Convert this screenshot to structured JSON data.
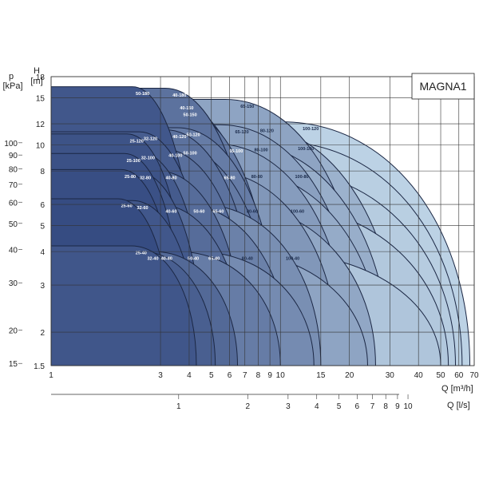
{
  "chart_data": {
    "type": "area",
    "title": "MAGNA1",
    "x_axis": {
      "label": "Q [m³/h]",
      "scale": "log",
      "range": [
        1,
        70
      ],
      "ticks": [
        1,
        3,
        4,
        5,
        6,
        7,
        8,
        9,
        10,
        15,
        20,
        30,
        40,
        50,
        60,
        70
      ]
    },
    "x2_axis": {
      "label": "Q [l/s]",
      "scale": "log",
      "ticks": [
        1,
        2,
        3,
        4,
        5,
        6,
        7,
        8,
        9,
        10
      ]
    },
    "y_axis": {
      "label_top": "H",
      "label_bottom": "[m]",
      "scale": "log",
      "range": [
        1.5,
        18
      ],
      "ticks": [
        1.5,
        2,
        3,
        4,
        5,
        6,
        8,
        10,
        12,
        15,
        18
      ]
    },
    "y2_axis": {
      "label_top": "p",
      "label_bottom": "[kPa]",
      "scale": "log",
      "ticks": [
        15,
        20,
        30,
        40,
        50,
        60,
        70,
        80,
        90,
        100
      ]
    },
    "grid": true,
    "series": [
      {
        "name": "50-180",
        "hmax": 16.5,
        "qmax": 4.4
      },
      {
        "name": "40-180",
        "hmax": 16.3,
        "qmax": 8.0
      },
      {
        "name": "65-150",
        "hmax": 14.8,
        "qmax": 24.0
      },
      {
        "name": "40-150",
        "hmax": 14.6,
        "qmax": 9.0
      },
      {
        "name": "50-150",
        "hmax": 13.8,
        "qmax": 9.5
      },
      {
        "name": "100-120",
        "hmax": 12.2,
        "qmax": 67.0
      },
      {
        "name": "80-120",
        "hmax": 12.0,
        "qmax": 33.0
      },
      {
        "name": "65-120",
        "hmax": 11.9,
        "qmax": 22.0
      },
      {
        "name": "50-120",
        "hmax": 11.6,
        "qmax": 10.0
      },
      {
        "name": "40-120",
        "hmax": 11.4,
        "qmax": 8.0
      },
      {
        "name": "32-120",
        "hmax": 11.2,
        "qmax": 5.0
      },
      {
        "name": "25-120",
        "hmax": 11.0,
        "qmax": 4.0
      },
      {
        "name": "100-100",
        "hmax": 10.3,
        "qmax": 62.0
      },
      {
        "name": "80-100",
        "hmax": 10.2,
        "qmax": 30.0
      },
      {
        "name": "65-100",
        "hmax": 10.1,
        "qmax": 20.0
      },
      {
        "name": "50-100",
        "hmax": 9.9,
        "qmax": 9.5
      },
      {
        "name": "40-100",
        "hmax": 9.7,
        "qmax": 7.5
      },
      {
        "name": "32-100",
        "hmax": 9.5,
        "qmax": 4.8
      },
      {
        "name": "25-100",
        "hmax": 9.3,
        "qmax": 3.8
      },
      {
        "name": "100-80",
        "hmax": 8.1,
        "qmax": 58.0
      },
      {
        "name": "80-80",
        "hmax": 8.1,
        "qmax": 28.0
      },
      {
        "name": "65-80",
        "hmax": 8.0,
        "qmax": 18.0
      },
      {
        "name": "40-80",
        "hmax": 8.0,
        "qmax": 7.0
      },
      {
        "name": "32-80",
        "hmax": 8.0,
        "qmax": 4.6
      },
      {
        "name": "25-80",
        "hmax": 8.1,
        "qmax": 3.6
      },
      {
        "name": "100-60",
        "hmax": 6.0,
        "qmax": 54.0
      },
      {
        "name": "80-60",
        "hmax": 6.0,
        "qmax": 26.0
      },
      {
        "name": "65-60",
        "hmax": 6.0,
        "qmax": 15.0
      },
      {
        "name": "50-60",
        "hmax": 6.0,
        "qmax": 11.0
      },
      {
        "name": "40-60",
        "hmax": 6.0,
        "qmax": 7.0
      },
      {
        "name": "32-60",
        "hmax": 6.2,
        "qmax": 4.4
      },
      {
        "name": "25-60",
        "hmax": 6.3,
        "qmax": 3.4
      },
      {
        "name": "100-40",
        "hmax": 4.0,
        "qmax": 50.0
      },
      {
        "name": "80-40",
        "hmax": 4.0,
        "qmax": 24.0
      },
      {
        "name": "65-40",
        "hmax": 4.0,
        "qmax": 14.0
      },
      {
        "name": "50-40",
        "hmax": 4.0,
        "qmax": 10.0
      },
      {
        "name": "40-40",
        "hmax": 4.0,
        "qmax": 6.5
      },
      {
        "name": "32-40",
        "hmax": 4.0,
        "qmax": 5.2
      },
      {
        "name": "25-40",
        "hmax": 4.2,
        "qmax": 4.3
      }
    ],
    "annotations": [
      {
        "text": "80-80",
        "note": "tilted label near 65-80 zone edge"
      }
    ]
  }
}
